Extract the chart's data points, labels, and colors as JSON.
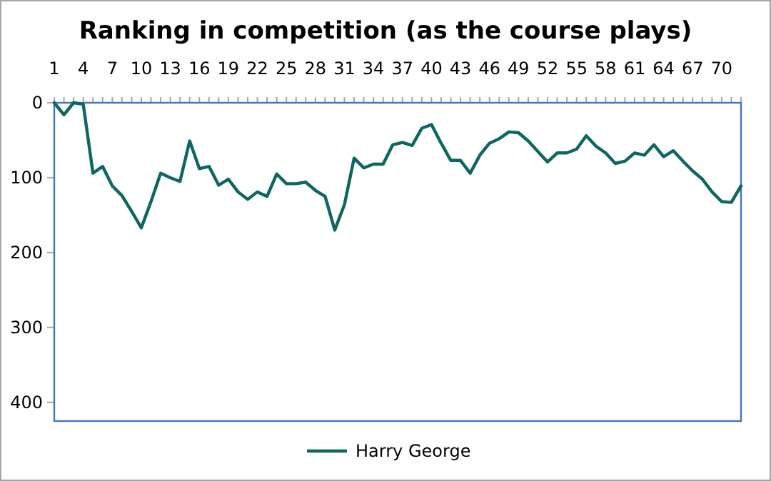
{
  "chart_data": {
    "type": "line",
    "title": "Ranking in competition (as the course plays)",
    "categories": [
      "1",
      null,
      null,
      "4",
      null,
      null,
      "7",
      null,
      null,
      "10",
      null,
      null,
      "13",
      null,
      null,
      "16",
      null,
      null,
      "19",
      null,
      null,
      "22",
      null,
      null,
      "25",
      null,
      null,
      "28",
      null,
      null,
      "31",
      null,
      null,
      "34",
      null,
      null,
      "37",
      null,
      null,
      "40",
      null,
      null,
      "43",
      null,
      null,
      "46",
      null,
      null,
      "49",
      null,
      null,
      "52",
      null,
      null,
      "55",
      null,
      null,
      "58",
      null,
      null,
      "61",
      null,
      null,
      "64",
      null,
      null,
      "67",
      null,
      null,
      "70",
      null,
      null
    ],
    "series": [
      {
        "name": "Harry George",
        "color": "#0e6661",
        "values": [
          0,
          16,
          0,
          2,
          94,
          85,
          111,
          124,
          145,
          167,
          132,
          94,
          100,
          105,
          51,
          88,
          85,
          110,
          102,
          119,
          129,
          119,
          125,
          95,
          108,
          108,
          106,
          117,
          125,
          170,
          136,
          74,
          87,
          82,
          82,
          56,
          53,
          57,
          34,
          29,
          54,
          77,
          77,
          94,
          70,
          54,
          48,
          39,
          40,
          51,
          65,
          79,
          67,
          67,
          62,
          44,
          58,
          67,
          81,
          78,
          67,
          70,
          56,
          72,
          64,
          78,
          91,
          102,
          119,
          132,
          133,
          111
        ]
      }
    ],
    "ylim": [
      425,
      0
    ],
    "yticks": [
      0,
      100,
      200,
      300,
      400
    ],
    "grid": false,
    "legend": "bottom",
    "line_style": "solid"
  }
}
